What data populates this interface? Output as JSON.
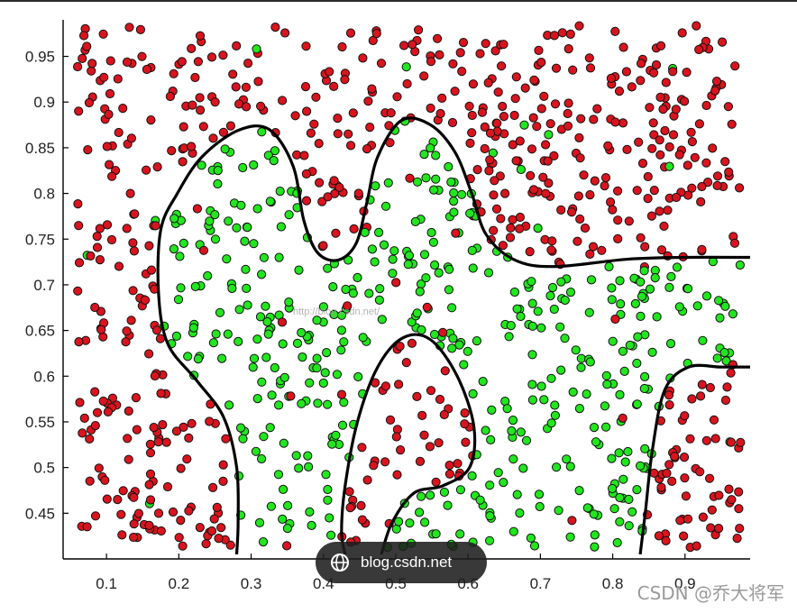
{
  "chart_data": {
    "type": "scatter",
    "title": "",
    "xlabel": "",
    "ylabel": "",
    "xlim": [
      0.04,
      0.99
    ],
    "ylim": [
      0.4,
      0.99
    ],
    "xticks": [
      "0.1",
      "0.2",
      "0.3",
      "0.4",
      "0.5",
      "0.6",
      "0.7",
      "0.8",
      "0.9"
    ],
    "yticks": [
      "0.95",
      "0.9",
      "0.85",
      "0.8",
      "0.75",
      "0.7",
      "0.65",
      "0.6",
      "0.55",
      "0.5",
      "0.45"
    ],
    "xtick_values": [
      0.1,
      0.2,
      0.3,
      0.4,
      0.5,
      0.6,
      0.7,
      0.8,
      0.9
    ],
    "ytick_values": [
      0.95,
      0.9,
      0.85,
      0.8,
      0.75,
      0.7,
      0.65,
      0.6,
      0.55,
      0.5,
      0.45
    ],
    "grid": false,
    "legend": "none",
    "series": [
      {
        "color": "#d9141e",
        "label_class": "1"
      },
      {
        "color": "#22e61e",
        "label_class": "-1"
      }
    ],
    "boundary": [
      [
        [
          0.28,
          0.405
        ],
        [
          0.282,
          0.44
        ],
        [
          0.28,
          0.5
        ],
        [
          0.262,
          0.555
        ],
        [
          0.225,
          0.595
        ],
        [
          0.185,
          0.635
        ],
        [
          0.172,
          0.69
        ],
        [
          0.175,
          0.76
        ],
        [
          0.198,
          0.8
        ],
        [
          0.232,
          0.84
        ],
        [
          0.282,
          0.869
        ],
        [
          0.325,
          0.87
        ],
        [
          0.358,
          0.83
        ],
        [
          0.373,
          0.77
        ],
        [
          0.392,
          0.735
        ],
        [
          0.42,
          0.727
        ],
        [
          0.445,
          0.745
        ],
        [
          0.46,
          0.79
        ],
        [
          0.475,
          0.84
        ],
        [
          0.508,
          0.88
        ],
        [
          0.548,
          0.875
        ],
        [
          0.582,
          0.845
        ],
        [
          0.605,
          0.8
        ],
        [
          0.625,
          0.755
        ],
        [
          0.665,
          0.727
        ],
        [
          0.72,
          0.72
        ],
        [
          0.82,
          0.728
        ],
        [
          0.9,
          0.73
        ],
        [
          0.99,
          0.73
        ]
      ],
      [
        [
          0.43,
          0.405
        ],
        [
          0.425,
          0.43
        ],
        [
          0.43,
          0.48
        ],
        [
          0.447,
          0.55
        ],
        [
          0.475,
          0.61
        ],
        [
          0.51,
          0.642
        ],
        [
          0.548,
          0.64
        ],
        [
          0.585,
          0.6
        ],
        [
          0.608,
          0.545
        ],
        [
          0.602,
          0.5
        ],
        [
          0.565,
          0.48
        ],
        [
          0.525,
          0.472
        ],
        [
          0.495,
          0.44
        ],
        [
          0.48,
          0.405
        ]
      ],
      [
        [
          0.838,
          0.405
        ],
        [
          0.845,
          0.45
        ],
        [
          0.855,
          0.52
        ],
        [
          0.872,
          0.585
        ],
        [
          0.905,
          0.61
        ],
        [
          0.95,
          0.61
        ],
        [
          0.99,
          0.61
        ]
      ]
    ]
  },
  "badge": {
    "text": "blog.csdn.net",
    "icon": "globe-icon"
  },
  "watermark": {
    "text": "CSDN @乔大将军"
  },
  "center_watermark": {
    "text": "http://blog.csdn.net/"
  }
}
